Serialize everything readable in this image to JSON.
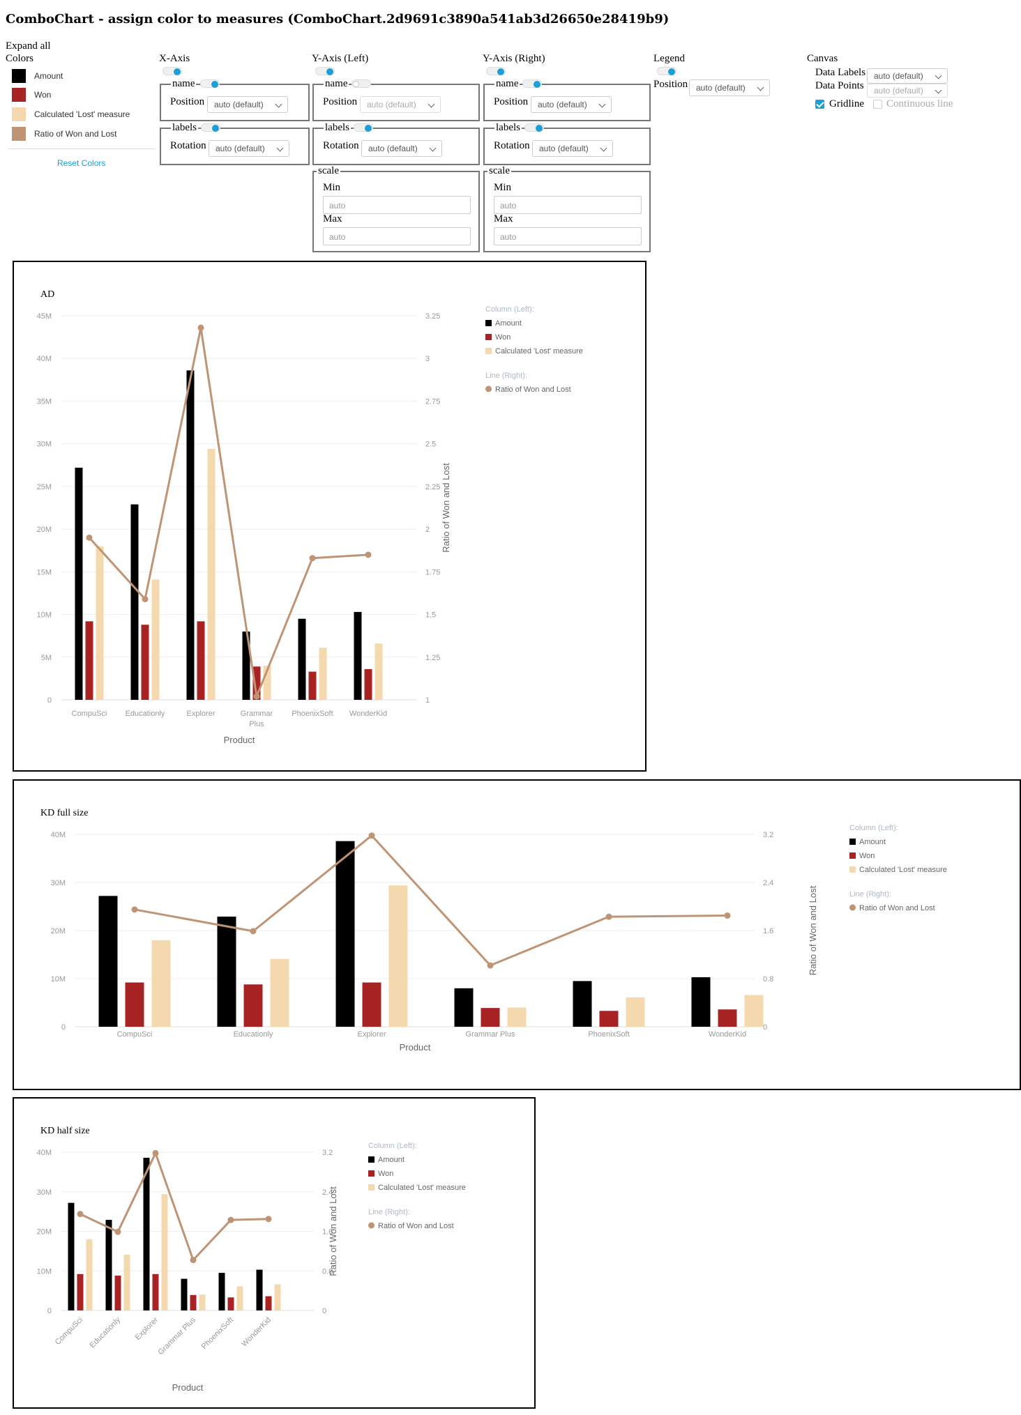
{
  "page_title": "ComboChart - assign color to measures (ComboChart.2d9691c3890a541ab3d26650e28419b9)",
  "colors_panel": {
    "expand_all": "Expand all",
    "heading": "Colors",
    "items": [
      {
        "label": "Amount",
        "color": "#000000"
      },
      {
        "label": "Won",
        "color": "#a82424"
      },
      {
        "label": "Calculated 'Lost' measure",
        "color": "#f4d9ae"
      },
      {
        "label": "Ratio of Won and Lost",
        "color": "#bf9475"
      }
    ],
    "reset": "Reset Colors"
  },
  "settings": {
    "xaxis": {
      "title": "X-Axis",
      "name_label": "name",
      "position_label": "Position",
      "position_value": "auto (default)",
      "labels_label": "labels",
      "rotation_label": "Rotation",
      "rotation_value": "auto (default)"
    },
    "yleft": {
      "title": "Y-Axis (Left)",
      "name_label": "name",
      "position_label": "Position",
      "position_value": "auto (default)",
      "labels_label": "labels",
      "rotation_label": "Rotation",
      "rotation_value": "auto (default)",
      "scale_label": "scale",
      "min_label": "Min",
      "min_placeholder": "auto",
      "max_label": "Max",
      "max_placeholder": "auto"
    },
    "yright": {
      "title": "Y-Axis (Right)",
      "name_label": "name",
      "position_label": "Position",
      "position_value": "auto (default)",
      "labels_label": "labels",
      "rotation_label": "Rotation",
      "rotation_value": "auto (default)",
      "scale_label": "scale",
      "min_label": "Min",
      "min_placeholder": "auto",
      "max_label": "Max",
      "max_placeholder": "auto"
    },
    "legend": {
      "title": "Legend",
      "position_label": "Position",
      "position_value": "auto (default)"
    },
    "canvas": {
      "title": "Canvas",
      "data_labels_label": "Data Labels",
      "data_labels_value": "auto (default)",
      "data_points_label": "Data Points",
      "data_points_value": "auto (default)",
      "gridline_label": "Gridline",
      "continuous_line_label": "Continuous line"
    }
  },
  "chart_data": [
    {
      "type": "bar",
      "title": "AD",
      "categories": [
        "CompuSci",
        "Educationly",
        "Explorer",
        "Grammar Plus",
        "PhoenixSoft",
        "WonderKid"
      ],
      "series": [
        {
          "name": "Amount",
          "values": [
            27.2,
            22.9,
            38.6,
            8.0,
            9.5,
            10.3
          ],
          "color": "#000000",
          "axis": "left"
        },
        {
          "name": "Won",
          "values": [
            9.2,
            8.8,
            9.2,
            3.9,
            3.3,
            3.6
          ],
          "color": "#a82424",
          "axis": "left"
        },
        {
          "name": "Calculated 'Lost' measure",
          "values": [
            18.0,
            14.1,
            29.4,
            4.0,
            6.1,
            6.6
          ],
          "color": "#f4d9ae",
          "axis": "left"
        },
        {
          "name": "Ratio of Won and Lost",
          "type": "line",
          "values": [
            1.95,
            1.59,
            3.18,
            1.02,
            1.83,
            1.85
          ],
          "color": "#bf9475",
          "axis": "right"
        }
      ],
      "left_ticks": [
        "0",
        "5M",
        "10M",
        "15M",
        "20M",
        "25M",
        "30M",
        "35M",
        "40M",
        "45M"
      ],
      "right_ticks": [
        "1",
        "1.25",
        "1.5",
        "1.75",
        "2",
        "2.25",
        "2.5",
        "2.75",
        "3",
        "3.25"
      ],
      "ylim_left": [
        0,
        45
      ],
      "ylim_right": [
        1,
        3.25
      ],
      "xlabel": "Product",
      "ylabel_right": "Ratio of Won and Lost",
      "legend_column_heading": "Column (Left):",
      "legend_line_heading": "Line (Right):",
      "legend_position": "right",
      "grid": true
    },
    {
      "type": "bar",
      "title": "KD full size",
      "categories": [
        "CompuSci",
        "Educationly",
        "Explorer",
        "Grammar Plus",
        "PhoenixSoft",
        "WonderKid"
      ],
      "series": [
        {
          "name": "Amount",
          "values": [
            27.2,
            22.9,
            38.6,
            8.0,
            9.5,
            10.3
          ],
          "color": "#000000",
          "axis": "left"
        },
        {
          "name": "Won",
          "values": [
            9.2,
            8.8,
            9.2,
            3.9,
            3.3,
            3.6
          ],
          "color": "#a82424",
          "axis": "left"
        },
        {
          "name": "Calculated 'Lost' measure",
          "values": [
            18.0,
            14.1,
            29.4,
            4.0,
            6.1,
            6.6
          ],
          "color": "#f4d9ae",
          "axis": "left"
        },
        {
          "name": "Ratio of Won and Lost",
          "type": "line",
          "values": [
            1.95,
            1.59,
            3.18,
            1.02,
            1.83,
            1.85
          ],
          "color": "#bf9475",
          "axis": "right"
        }
      ],
      "left_ticks": [
        "0",
        "10M",
        "20M",
        "30M",
        "40M"
      ],
      "right_ticks": [
        "0",
        "0.8",
        "1.6",
        "2.4",
        "3.2"
      ],
      "ylim_left": [
        0,
        40
      ],
      "ylim_right": [
        0,
        3.2
      ],
      "xlabel": "Product",
      "ylabel_right": "Ratio of Won and Lost",
      "legend_column_heading": "Column (Left):",
      "legend_line_heading": "Line (Right):",
      "legend_position": "right",
      "grid": true
    },
    {
      "type": "bar",
      "title": "KD half size",
      "categories": [
        "CompuSci",
        "Educationly",
        "Explorer",
        "Grammar Plus",
        "PhoenixSoft",
        "WonderKid"
      ],
      "series": [
        {
          "name": "Amount",
          "values": [
            27.2,
            22.9,
            38.6,
            8.0,
            9.5,
            10.3
          ],
          "color": "#000000",
          "axis": "left"
        },
        {
          "name": "Won",
          "values": [
            9.2,
            8.8,
            9.2,
            3.9,
            3.3,
            3.6
          ],
          "color": "#a82424",
          "axis": "left"
        },
        {
          "name": "Calculated 'Lost' measure",
          "values": [
            18.0,
            14.1,
            29.4,
            4.0,
            6.1,
            6.6
          ],
          "color": "#f4d9ae",
          "axis": "left"
        },
        {
          "name": "Ratio of Won and Lost",
          "type": "line",
          "values": [
            1.95,
            1.59,
            3.18,
            1.02,
            1.83,
            1.85
          ],
          "color": "#bf9475",
          "axis": "right"
        }
      ],
      "left_ticks": [
        "0",
        "10M",
        "20M",
        "30M",
        "40M"
      ],
      "right_ticks": [
        "0",
        "0.8",
        "1.6",
        "2.4",
        "3.2"
      ],
      "ylim_left": [
        0,
        40
      ],
      "ylim_right": [
        0,
        3.2
      ],
      "xlabel": "Product",
      "ylabel_right": "Ratio of Won and Lost",
      "legend_column_heading": "Column (Left):",
      "legend_line_heading": "Line (Right):",
      "legend_position": "right",
      "x_labels_rotated": true,
      "grid": true
    }
  ]
}
